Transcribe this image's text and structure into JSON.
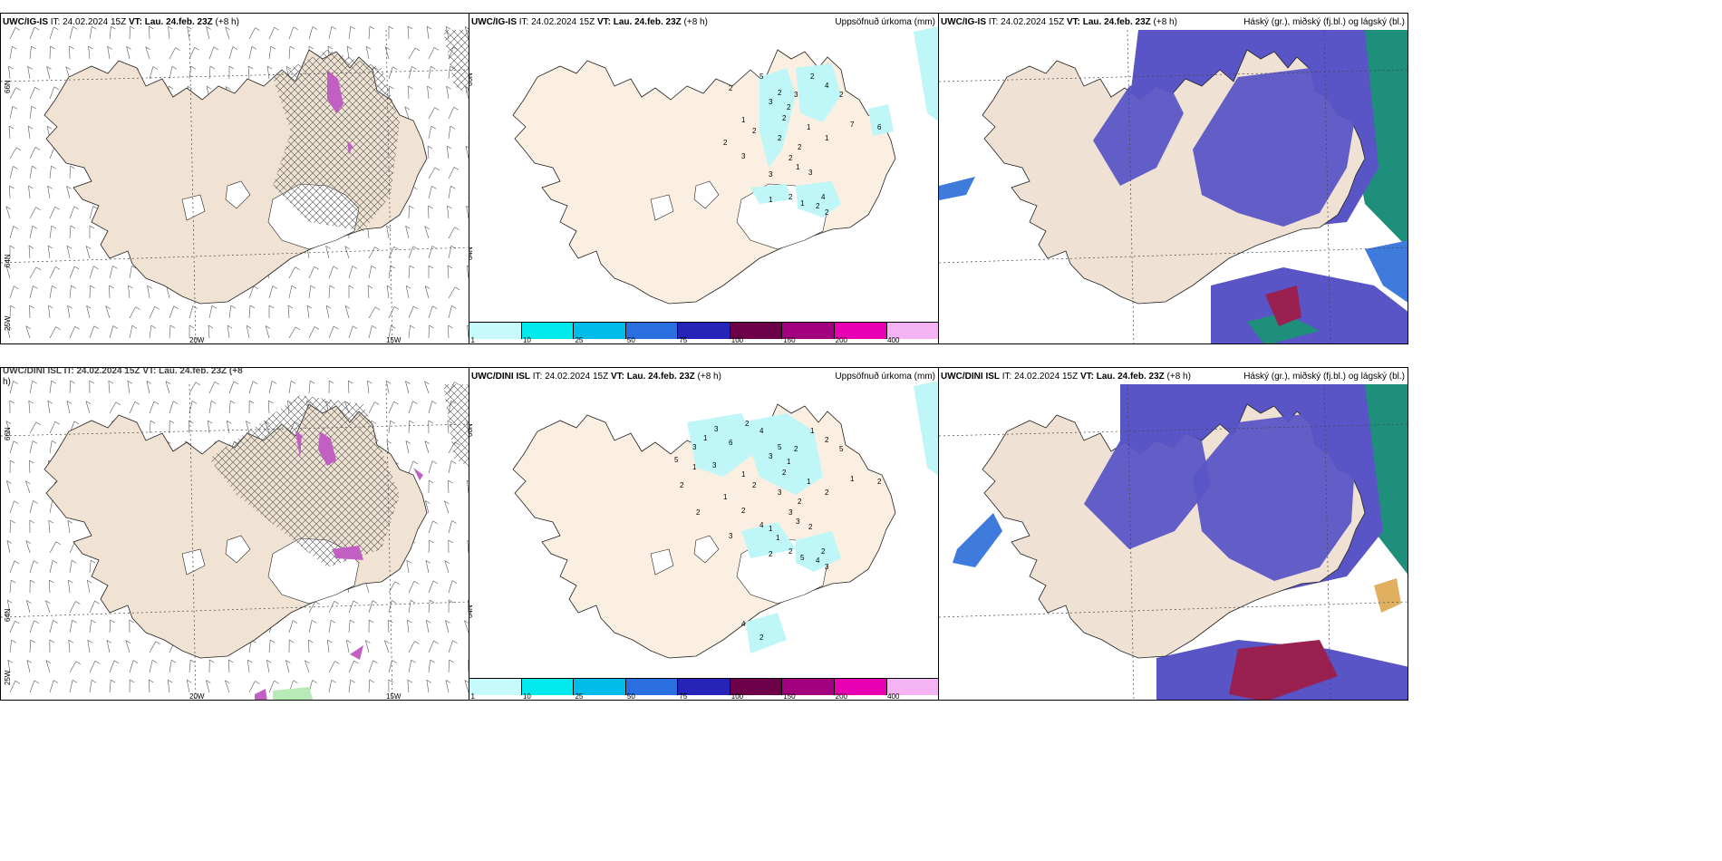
{
  "colors": {
    "land_wind": "#f0e3d3",
    "land_precip": "#fbefe2",
    "land_cloud": "#efe2d5",
    "hatch": "#555555",
    "pink": "#c15fc3",
    "cloud_high": "#1e8f7a",
    "cloud_mid": "#5a55c6",
    "cloud_low": "#3f7bdc",
    "precip_light": "#bff6f8"
  },
  "panels": {
    "top_wind": {
      "title_model": "UWC/IG-IS",
      "title_it": " IT: 24.02.2024 15Z ",
      "title_vt": "VT: Lau. 24.feb. 23Z",
      "title_lead": " (+8 h)"
    },
    "top_precip": {
      "title_model": "UWC/IG-IS",
      "title_it": " IT: 24.02.2024 15Z ",
      "title_vt": "VT: Lau. 24.feb. 23Z",
      "title_lead": " (+8 h)",
      "title_right": "Uppsöfnuð úrkoma (mm)",
      "labels": [
        "5",
        "2",
        "3",
        "2",
        "3",
        "2",
        "2",
        "1",
        "2",
        "2",
        "2",
        "3",
        "2",
        "1",
        "1",
        "7",
        "6",
        "1",
        "2",
        "3",
        "1",
        "2",
        "4",
        "2",
        "1",
        "2",
        "3",
        "2",
        "4",
        "2"
      ]
    },
    "top_cloud": {
      "title_model": "UWC/IG-IS",
      "title_it": " IT: 24.02.2024 15Z ",
      "title_vt": "VT: Lau. 24.feb. 23Z",
      "title_lead": " (+8 h)",
      "title_right": "Háský (gr.), miðský (fj.bl.) og lágský (bl.)"
    },
    "bottom_wind": {
      "title_line1": "UWC/DINI ISL IT: 24.02.2024 15Z VT: Lau. 24.feb. 23Z (+8",
      "title_line2": "h)"
    },
    "bottom_precip": {
      "title_model": "UWC/DINI ISL",
      "title_it": " IT: 24.02.2024 15Z ",
      "title_vt": "VT: Lau. 24.feb. 23Z",
      "title_lead": " (+8 h)",
      "title_right": "Uppsöfnuð úrkoma (mm)",
      "labels": [
        "4",
        "6",
        "3",
        "5",
        "2",
        "1",
        "2",
        "1",
        "2",
        "1",
        "3",
        "2",
        "3",
        "3",
        "2",
        "1",
        "2",
        "1",
        "2",
        "2",
        "2",
        "2",
        "2",
        "4",
        "5",
        "3",
        "1",
        "1",
        "2",
        "5",
        "3",
        "2",
        "1",
        "3",
        "3",
        "2",
        "1",
        "5",
        "2",
        "3",
        "4",
        "1",
        "4",
        "2"
      ]
    },
    "bottom_cloud": {
      "title_model": "UWC/DINI ISL",
      "title_it": " IT: 24.02.2024 15Z ",
      "title_vt": "VT: Lau. 24.feb. 23Z",
      "title_lead": " (+8 h)",
      "title_right": "Háský (gr.), miðský (fj.bl.) og lágský (bl.)"
    }
  },
  "axes": {
    "lat_66": "66N",
    "lat_64": "64N",
    "lon_25": "25W",
    "lon_20": "20W",
    "lon_15": "15W"
  },
  "colorbar": {
    "colors": [
      "#c7fbfb",
      "#00e9ec",
      "#00bcea",
      "#2a6fe0",
      "#2523b8",
      "#6c0049",
      "#a3007f",
      "#ea00b3",
      "#f4b3f2"
    ],
    "ticks": [
      "1",
      "10",
      "25",
      "50",
      "75",
      "100",
      "150",
      "200",
      "400"
    ]
  }
}
